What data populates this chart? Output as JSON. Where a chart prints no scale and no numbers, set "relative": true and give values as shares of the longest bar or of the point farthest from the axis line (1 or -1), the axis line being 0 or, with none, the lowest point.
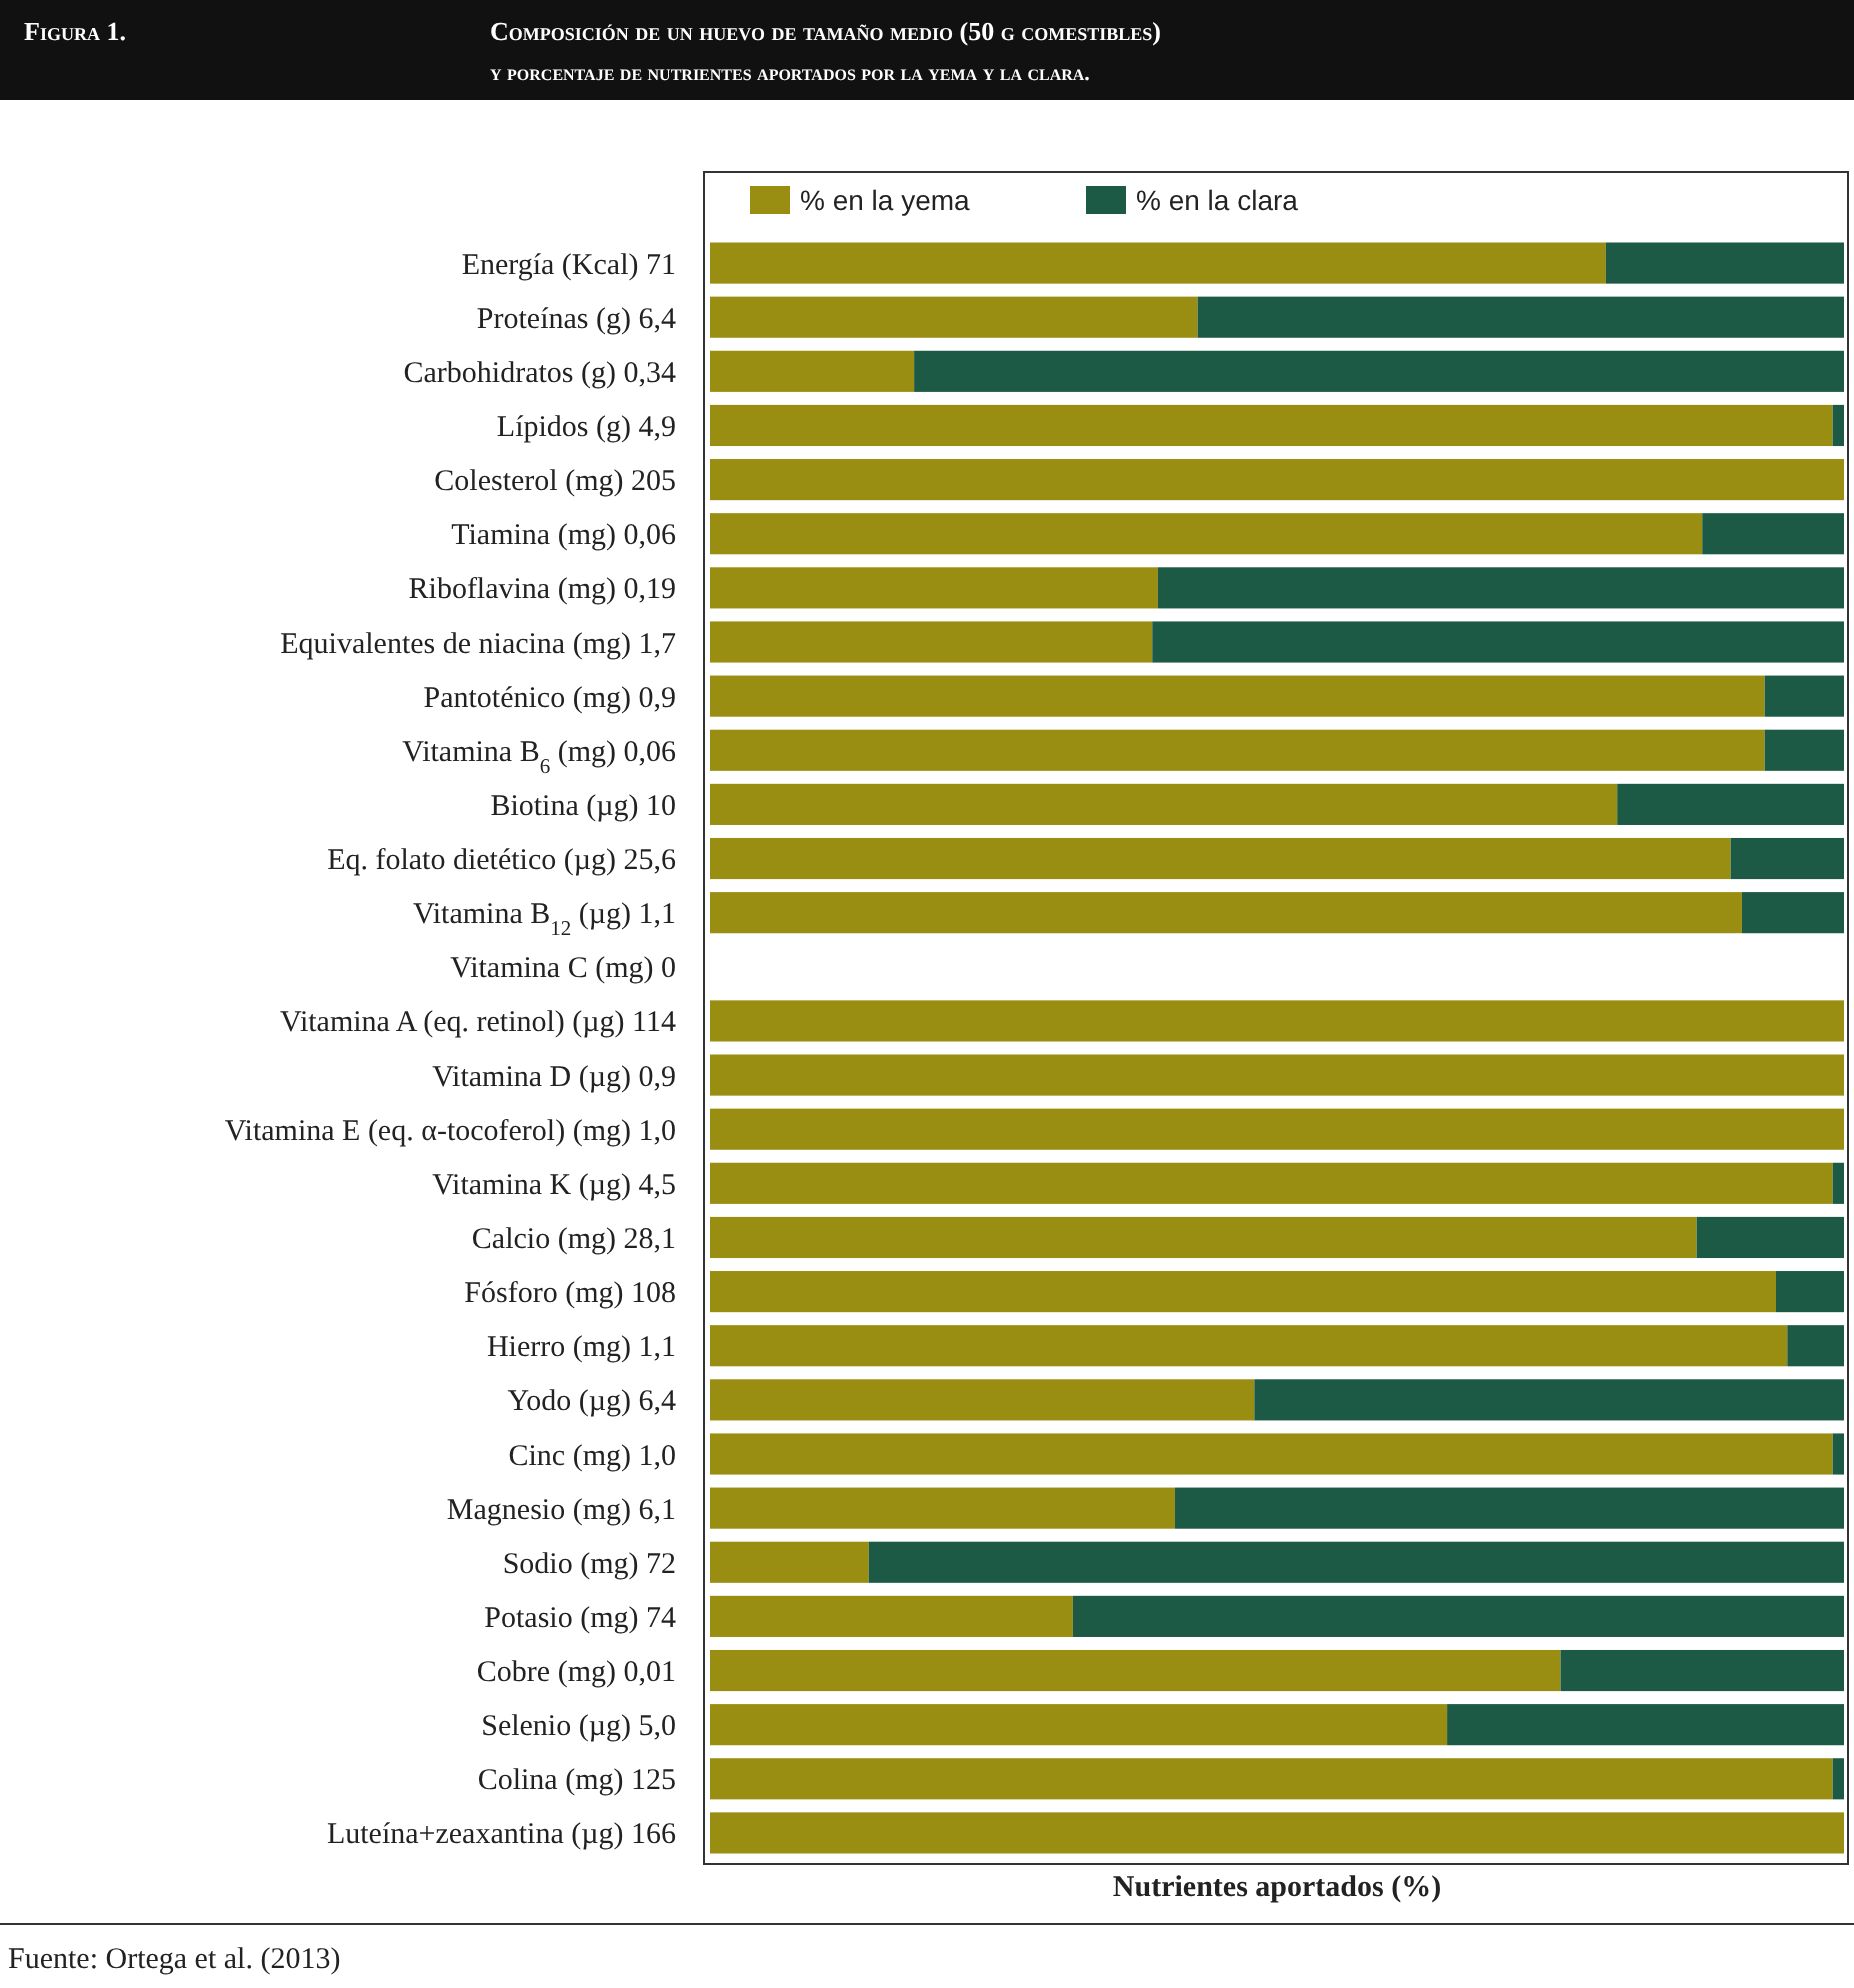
{
  "chart_data": {
    "type": "bar",
    "orientation": "horizontal",
    "stacked": true,
    "relative": true,
    "title": "Composición de un huevo de tamaño medio (50 g comestibles)",
    "subtitle": "y porcentaje de nutrientes aportados por la yema y la clara.",
    "xlabel": "Nutrientes aportados (%)",
    "annotations": [
      "Figura 1.",
      "Fuente: Ortega et al. (2013)"
    ],
    "legend": "top",
    "categories": [
      "Energía (Kcal) 71",
      "Proteínas (g) 6,4",
      "Carbohidratos (g) 0,34",
      "Lípidos (g) 4,9",
      "Colesterol (mg) 205",
      "Tiamina (mg) 0,06",
      "Riboflavina (mg) 0,19",
      "Equivalentes de niacina (mg) 1,7",
      "Pantoténico (mg) 0,9",
      "Vitamina B$_{6}$ (mg) 0,06",
      "Biotina (µg) 10",
      "Eq. folato dietético (µg) 25,6",
      "Vitamina B$_{12}$ (µg) 1,1",
      "Vitamina C (mg) 0",
      "Vitamina A (eq. retinol) (µg) 114",
      "Vitamina D (µg) 0,9",
      "Vitamina E (eq. α-tocoferol) (mg) 1,0",
      "Vitamina K (µg) 4,5",
      "Calcio (mg) 28,1",
      "Fósforo (mg) 108",
      "Hierro (mg) 1,1",
      "Yodo (µg) 6,4",
      "Cinc (mg) 1,0",
      "Magnesio (mg) 6,1",
      "Sodio (mg) 72",
      "Potasio (mg) 74",
      "Cobre (mg) 0,01",
      "Selenio (µg) 5,0",
      "Colina (mg) 125",
      "Luteína+zeaxantina (µg) 166"
    ],
    "series": [
      {
        "name": "% en la yema",
        "color": "#9a8e12",
        "values": [
          0.79,
          0.43,
          0.18,
          0.99,
          1,
          0.875,
          0.395,
          0.39,
          0.93,
          0.93,
          0.8,
          0.9,
          0.91,
          0,
          1,
          1,
          1,
          0.99,
          0.87,
          0.94,
          0.95,
          0.48,
          0.99,
          0.41,
          0.14,
          0.32,
          0.75,
          0.65,
          0.99,
          1
        ]
      },
      {
        "name": "% en la clara",
        "color": "#1d5a45",
        "values": [
          0.21,
          0.57,
          0.82,
          0.01,
          0,
          0.125,
          0.605,
          0.61,
          0.07,
          0.07,
          0.2,
          0.1,
          0.09,
          0,
          0,
          0,
          0,
          0.01,
          0.13,
          0.06,
          0.05,
          0.52,
          0.01,
          0.59,
          0.86,
          0.68,
          0.25,
          0.35,
          0.01,
          0
        ]
      }
    ]
  }
}
